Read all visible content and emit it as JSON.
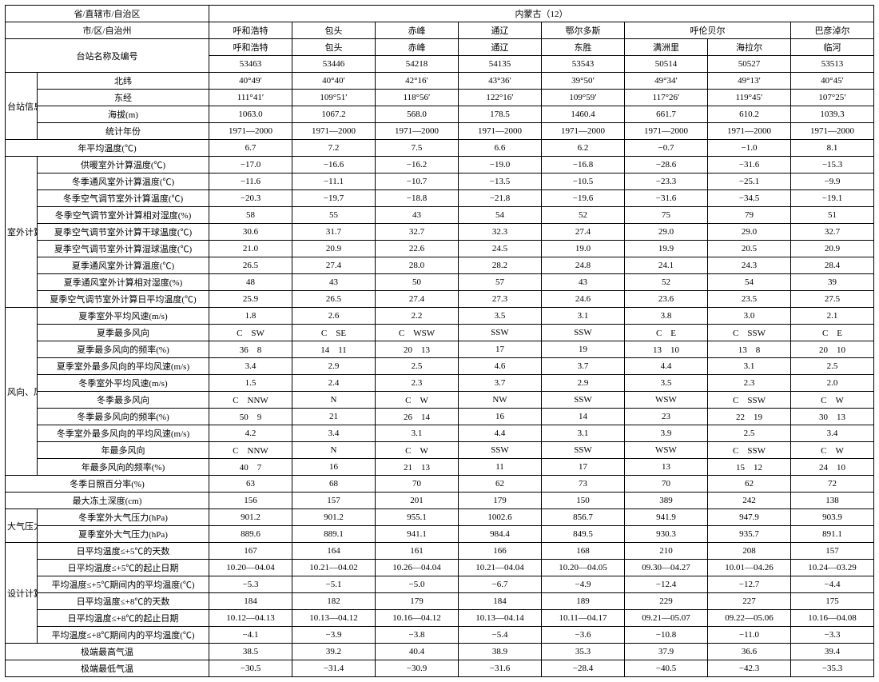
{
  "header": {
    "province_label": "省/直辖市/自治区",
    "province_value": "内蒙古（12）",
    "city_label": "市/区/自治州",
    "station_label": "台站名称及编号",
    "cities": [
      "呼和浩特",
      "包头",
      "赤峰",
      "通辽",
      "鄂尔多斯",
      "呼伦贝尔",
      "呼伦贝尔",
      "巴彦淖尔"
    ],
    "stations": [
      "呼和浩特",
      "包头",
      "赤峰",
      "通辽",
      "东胜",
      "满洲里",
      "海拉尔",
      "临河"
    ],
    "codes": [
      "53463",
      "53446",
      "54218",
      "54135",
      "53543",
      "50514",
      "50527",
      "53513"
    ]
  },
  "sections": [
    {
      "label": "台站信息",
      "rows": [
        {
          "p": "北纬",
          "v": [
            "40°49′",
            "40°40′",
            "42°16′",
            "43°36′",
            "39°50′",
            "49°34′",
            "49°13′",
            "40°45′"
          ]
        },
        {
          "p": "东经",
          "v": [
            "111°41′",
            "109°51′",
            "118°56′",
            "122°16′",
            "109°59′",
            "117°26′",
            "119°45′",
            "107°25′"
          ]
        },
        {
          "p": "海拔(m)",
          "v": [
            "1063.0",
            "1067.2",
            "568.0",
            "178.5",
            "1460.4",
            "661.7",
            "610.2",
            "1039.3"
          ]
        },
        {
          "p": "统计年份",
          "v": [
            "1971—2000",
            "1971—2000",
            "1971—2000",
            "1971—2000",
            "1971—2000",
            "1971—2000",
            "1971—2000",
            "1971—2000"
          ]
        }
      ]
    },
    {
      "label": "",
      "rows": [
        {
          "p": "年平均温度(℃)",
          "v": [
            "6.7",
            "7.2",
            "7.5",
            "6.6",
            "6.2",
            "−0.7",
            "−1.0",
            "8.1"
          ]
        }
      ]
    },
    {
      "label": "室外计算温、湿度",
      "rows": [
        {
          "p": "供暖室外计算温度(℃)",
          "v": [
            "−17.0",
            "−16.6",
            "−16.2",
            "−19.0",
            "−16.8",
            "−28.6",
            "−31.6",
            "−15.3"
          ]
        },
        {
          "p": "冬季通风室外计算温度(℃)",
          "v": [
            "−11.6",
            "−11.1",
            "−10.7",
            "−13.5",
            "−10.5",
            "−23.3",
            "−25.1",
            "−9.9"
          ]
        },
        {
          "p": "冬季空气调节室外计算温度(℃)",
          "v": [
            "−20.3",
            "−19.7",
            "−18.8",
            "−21.8",
            "−19.6",
            "−31.6",
            "−34.5",
            "−19.1"
          ]
        },
        {
          "p": "冬季空气调节室外计算相对湿度(%)",
          "v": [
            "58",
            "55",
            "43",
            "54",
            "52",
            "75",
            "79",
            "51"
          ]
        },
        {
          "p": "夏季空气调节室外计算干球温度(℃)",
          "v": [
            "30.6",
            "31.7",
            "32.7",
            "32.3",
            "27.4",
            "29.0",
            "29.0",
            "32.7"
          ]
        },
        {
          "p": "夏季空气调节室外计算湿球温度(℃)",
          "v": [
            "21.0",
            "20.9",
            "22.6",
            "24.5",
            "19.0",
            "19.9",
            "20.5",
            "20.9"
          ]
        },
        {
          "p": "夏季通风室外计算温度(℃)",
          "v": [
            "26.5",
            "27.4",
            "28.0",
            "28.2",
            "24.8",
            "24.1",
            "24.3",
            "28.4"
          ]
        },
        {
          "p": "夏季通风室外计算相对湿度(%)",
          "v": [
            "48",
            "43",
            "50",
            "57",
            "43",
            "52",
            "54",
            "39"
          ]
        },
        {
          "p": "夏季空气调节室外计算日平均温度(℃)",
          "v": [
            "25.9",
            "26.5",
            "27.4",
            "27.3",
            "24.6",
            "23.6",
            "23.5",
            "27.5"
          ]
        }
      ]
    },
    {
      "label": "风向、风速及频率",
      "rows": [
        {
          "p": "夏季室外平均风速(m/s)",
          "v": [
            "1.8",
            "2.6",
            "2.2",
            "3.5",
            "3.1",
            "3.8",
            "3.0",
            "2.1"
          ]
        },
        {
          "p": "夏季最多风向",
          "v": [
            "C　SW",
            "C　SE",
            "C　WSW",
            "SSW",
            "SSW",
            "C　E",
            "C　SSW",
            "C　E"
          ]
        },
        {
          "p": "夏季最多风向的频率(%)",
          "v": [
            "36　8",
            "14　11",
            "20　13",
            "17",
            "19",
            "13　10",
            "13　8",
            "20　10"
          ]
        },
        {
          "p": "夏季室外最多风向的平均风速(m/s)",
          "v": [
            "3.4",
            "2.9",
            "2.5",
            "4.6",
            "3.7",
            "4.4",
            "3.1",
            "2.5"
          ]
        },
        {
          "p": "冬季室外平均风速(m/s)",
          "v": [
            "1.5",
            "2.4",
            "2.3",
            "3.7",
            "2.9",
            "3.5",
            "2.3",
            "2.0"
          ]
        },
        {
          "p": "冬季最多风向",
          "v": [
            "C　NNW",
            "N",
            "C　W",
            "NW",
            "SSW",
            "WSW",
            "C　SSW",
            "C　W"
          ]
        },
        {
          "p": "冬季最多风向的频率(%)",
          "v": [
            "50　9",
            "21",
            "26　14",
            "16",
            "14",
            "23",
            "22　19",
            "30　13"
          ]
        },
        {
          "p": "冬季室外最多风向的平均风速(m/s)",
          "v": [
            "4.2",
            "3.4",
            "3.1",
            "4.4",
            "3.1",
            "3.9",
            "2.5",
            "3.4"
          ]
        },
        {
          "p": "年最多风向",
          "v": [
            "C　NNW",
            "N",
            "C　W",
            "SSW",
            "SSW",
            "WSW",
            "C　SSW",
            "C　W"
          ]
        },
        {
          "p": "年最多风向的频率(%)",
          "v": [
            "40　7",
            "16",
            "21　13",
            "11",
            "17",
            "13",
            "15　12",
            "24　10"
          ]
        }
      ]
    },
    {
      "label": "",
      "rows": [
        {
          "p": "冬季日照百分率(%)",
          "v": [
            "63",
            "68",
            "70",
            "62",
            "73",
            "70",
            "62",
            "72"
          ]
        }
      ]
    },
    {
      "label": "",
      "rows": [
        {
          "p": "最大冻土深度(cm)",
          "v": [
            "156",
            "157",
            "201",
            "179",
            "150",
            "389",
            "242",
            "138"
          ]
        }
      ]
    },
    {
      "label": "大气压力",
      "rows": [
        {
          "p": "冬季室外大气压力(hPa)",
          "v": [
            "901.2",
            "901.2",
            "955.1",
            "1002.6",
            "856.7",
            "941.9",
            "947.9",
            "903.9"
          ]
        },
        {
          "p": "夏季室外大气压力(hPa)",
          "v": [
            "889.6",
            "889.1",
            "941.1",
            "984.4",
            "849.5",
            "930.3",
            "935.7",
            "891.1"
          ]
        }
      ]
    },
    {
      "label": "设计计算用供暖期天数及其平均温度",
      "rows": [
        {
          "p": "日平均温度≤+5℃的天数",
          "v": [
            "167",
            "164",
            "161",
            "166",
            "168",
            "210",
            "208",
            "157"
          ]
        },
        {
          "p": "日平均温度≤+5℃的起止日期",
          "v": [
            "10.20—04.04",
            "10.21—04.02",
            "10.26—04.04",
            "10.21—04.04",
            "10.20—04.05",
            "09.30—04.27",
            "10.01—04.26",
            "10.24—03.29"
          ]
        },
        {
          "p": "平均温度≤+5℃期间内的平均温度(℃)",
          "v": [
            "−5.3",
            "−5.1",
            "−5.0",
            "−6.7",
            "−4.9",
            "−12.4",
            "−12.7",
            "−4.4"
          ]
        },
        {
          "p": "日平均温度≤+8℃的天数",
          "v": [
            "184",
            "182",
            "179",
            "184",
            "189",
            "229",
            "227",
            "175"
          ]
        },
        {
          "p": "日平均温度≤+8℃的起止日期",
          "v": [
            "10.12—04.13",
            "10.13—04.12",
            "10.16—04.12",
            "10.13—04.14",
            "10.11—04.17",
            "09.21—05.07",
            "09.22—05.06",
            "10.16—04.08"
          ]
        },
        {
          "p": "平均温度≤+8℃期间内的平均温度(℃)",
          "v": [
            "−4.1",
            "−3.9",
            "−3.8",
            "−5.4",
            "−3.6",
            "−10.8",
            "−11.0",
            "−3.3"
          ]
        }
      ]
    },
    {
      "label": "",
      "rows": [
        {
          "p": "极端最高气温",
          "v": [
            "38.5",
            "39.2",
            "40.4",
            "38.9",
            "35.3",
            "37.9",
            "36.6",
            "39.4"
          ]
        }
      ]
    },
    {
      "label": "",
      "rows": [
        {
          "p": "极端最低气温",
          "v": [
            "−30.5",
            "−31.4",
            "−30.9",
            "−31.6",
            "−28.4",
            "−40.5",
            "−42.3",
            "−35.3"
          ]
        }
      ]
    }
  ]
}
